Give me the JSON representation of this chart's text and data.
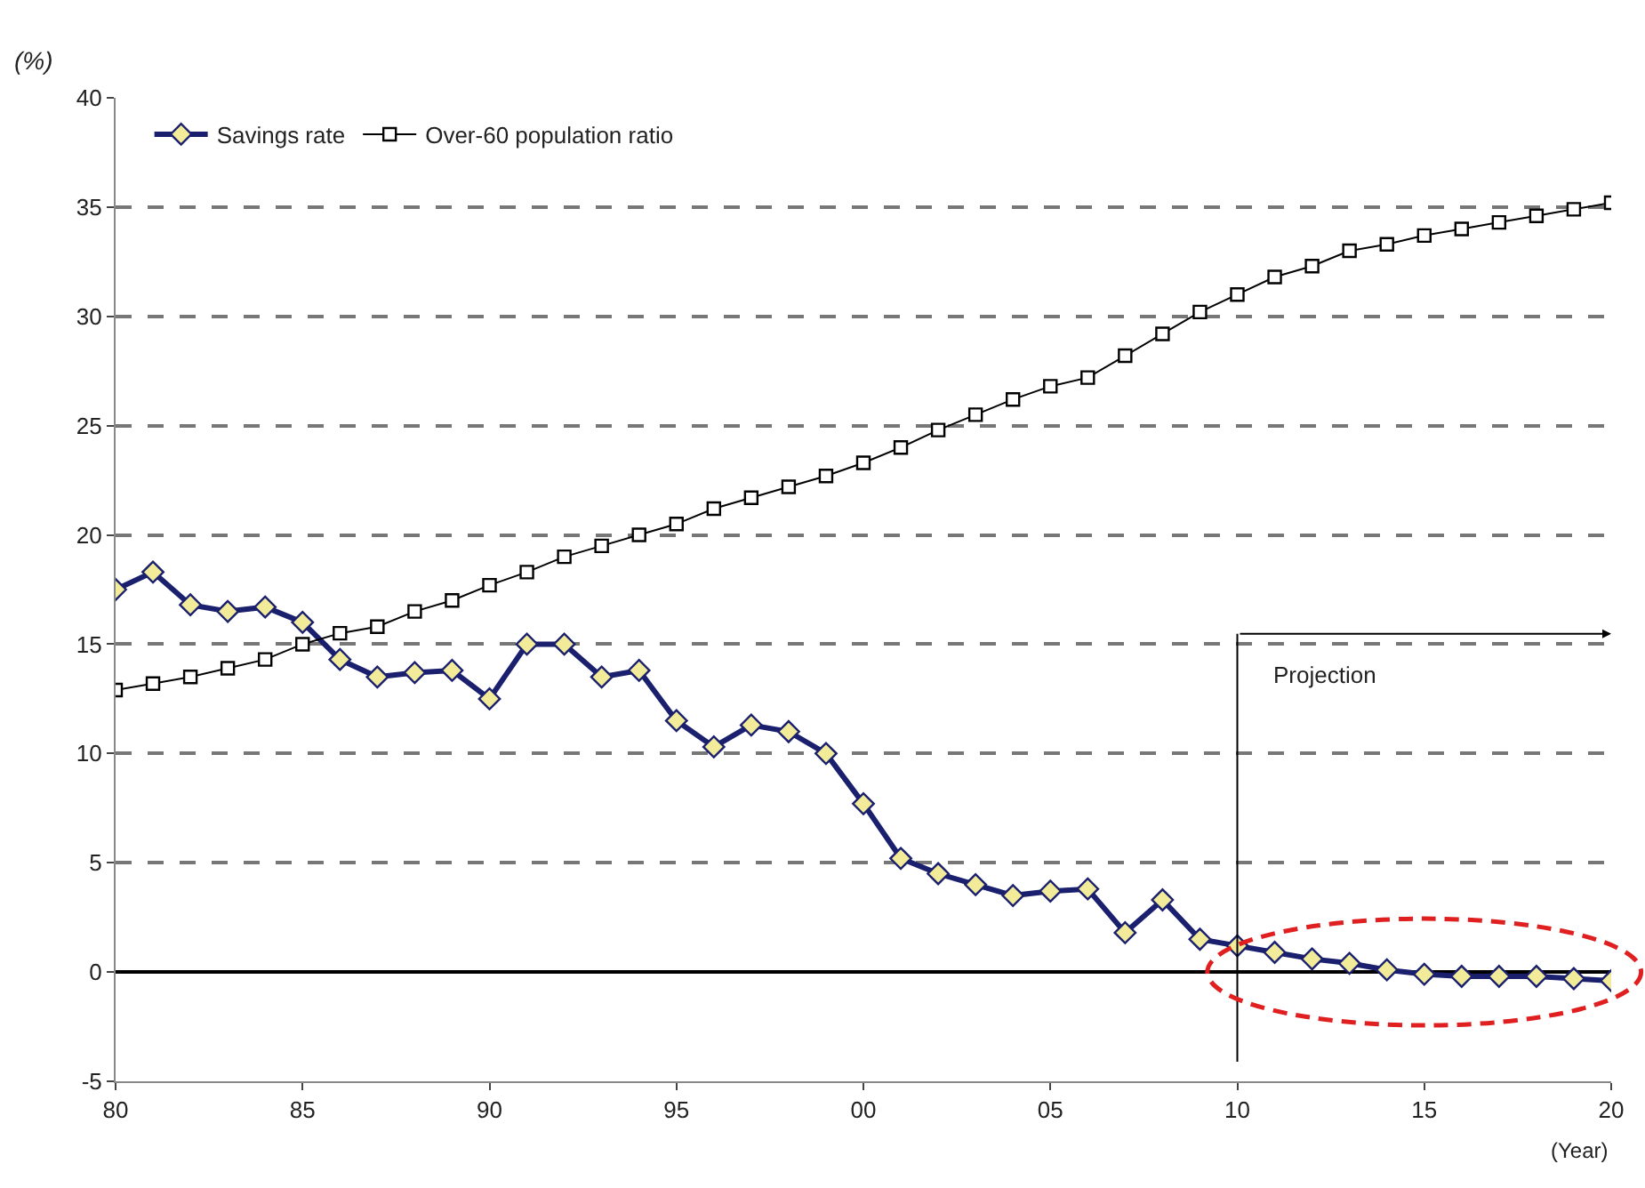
{
  "chart_data": {
    "type": "line",
    "xlabel": "(Year)",
    "ylabel": "(%)",
    "x": [
      1980,
      1981,
      1982,
      1983,
      1984,
      1985,
      1986,
      1987,
      1988,
      1989,
      1990,
      1991,
      1992,
      1993,
      1994,
      1995,
      1996,
      1997,
      1998,
      1999,
      2000,
      2001,
      2002,
      2003,
      2004,
      2005,
      2006,
      2007,
      2008,
      2009,
      2010,
      2011,
      2012,
      2013,
      2014,
      2015,
      2016,
      2017,
      2018,
      2019,
      2020
    ],
    "series": [
      {
        "name": "Savings rate",
        "color": "#1a1f6e",
        "marker": "diamond",
        "values": [
          17.5,
          18.3,
          16.8,
          16.5,
          16.7,
          16,
          14.3,
          13.5,
          13.7,
          13.8,
          12.5,
          15,
          15,
          13.5,
          13.8,
          11.5,
          10.3,
          11.3,
          11,
          10,
          7.7,
          5.2,
          4.5,
          4,
          3.5,
          3.7,
          3.8,
          1.8,
          3.3,
          1.5,
          1.2,
          0.9,
          0.6,
          0.4,
          0.1,
          -0.1,
          -0.2,
          -0.2,
          -0.2,
          -0.3,
          -0.4
        ]
      },
      {
        "name": "Over-60 population ratio",
        "color": "#000000",
        "marker": "square",
        "values": [
          12.9,
          13.2,
          13.5,
          13.9,
          14.3,
          15,
          15.5,
          15.8,
          16.5,
          17,
          17.7,
          18.3,
          19,
          19.5,
          20,
          20.5,
          21.2,
          21.7,
          22.2,
          22.7,
          23.3,
          24,
          24.8,
          25.5,
          26.2,
          26.8,
          27.2,
          28.2,
          29.2,
          30.2,
          31,
          31.8,
          32.3,
          33,
          33.3,
          33.7,
          34,
          34.3,
          34.6,
          34.9,
          35.2
        ]
      }
    ],
    "xlim": [
      1980,
      2020
    ],
    "xticks": [
      {
        "value": 1980,
        "label": "80"
      },
      {
        "value": 1985,
        "label": "85"
      },
      {
        "value": 1990,
        "label": "90"
      },
      {
        "value": 1995,
        "label": "95"
      },
      {
        "value": 2000,
        "label": "00"
      },
      {
        "value": 2005,
        "label": "05"
      },
      {
        "value": 2010,
        "label": "10"
      },
      {
        "value": 2015,
        "label": "15"
      },
      {
        "value": 2020,
        "label": "20"
      }
    ],
    "ylim": [
      -5,
      40
    ],
    "yticks": [
      -5,
      0,
      5,
      10,
      15,
      20,
      25,
      30,
      35,
      40
    ],
    "grid": "y",
    "legend": "top left",
    "line_style": "solid",
    "ref_lines": [
      {
        "axis": "x",
        "value": 2010,
        "label": "Projection",
        "color": "#000000"
      }
    ]
  }
}
